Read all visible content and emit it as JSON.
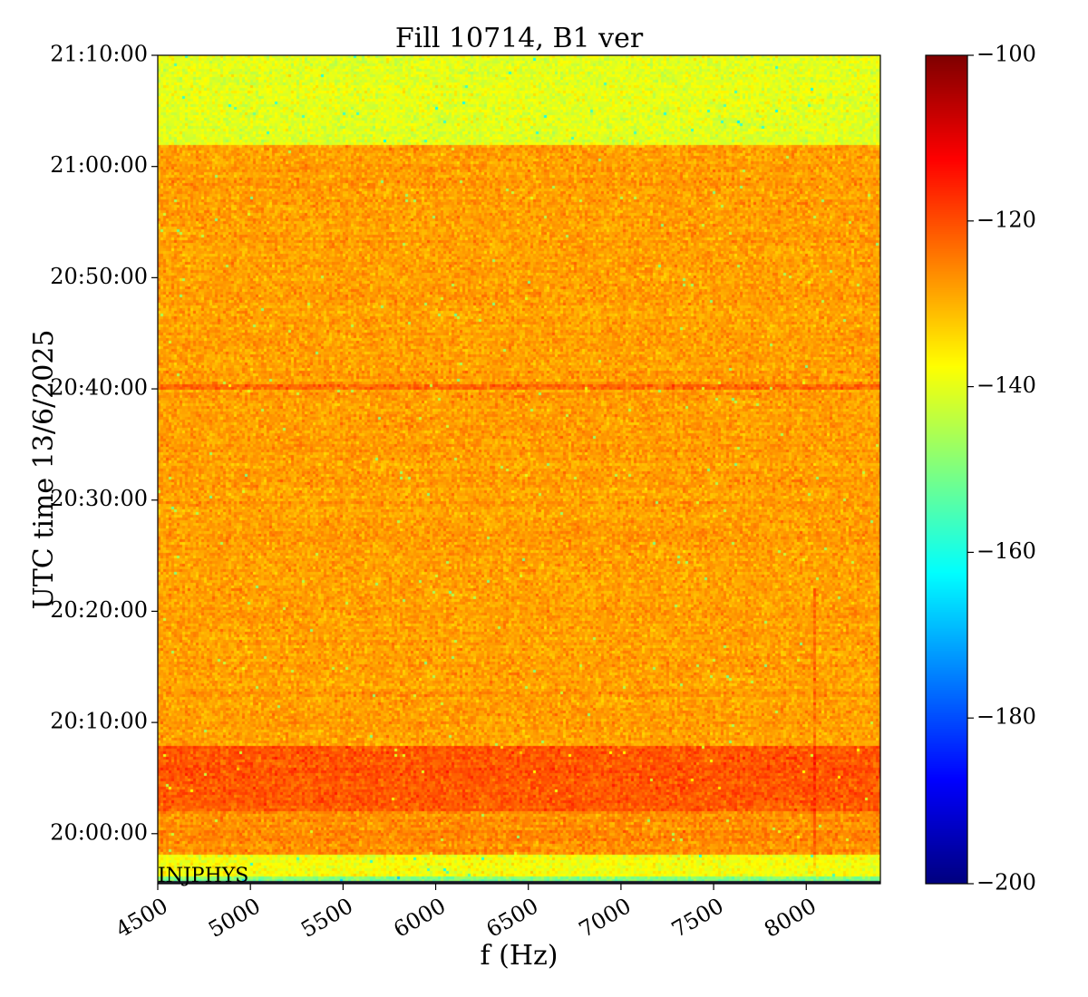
{
  "chart_data": {
    "type": "heatmap",
    "title": "Fill 10714, B1 ver",
    "xlabel": "f (Hz)",
    "ylabel": "UTC time 13/6/2025",
    "x_ticks": [
      "4500",
      "5000",
      "5500",
      "6000",
      "6500",
      "7000",
      "7500",
      "8000"
    ],
    "x_tick_values": [
      4500,
      5000,
      5500,
      6000,
      6500,
      7000,
      7500,
      8000
    ],
    "xlim": [
      4500,
      8400
    ],
    "y_ticks": [
      "20:00:00",
      "20:10:00",
      "20:20:00",
      "20:30:00",
      "20:40:00",
      "20:50:00",
      "21:00:00",
      "21:10:00"
    ],
    "y_tick_values_minutes": [
      0,
      10,
      20,
      30,
      40,
      50,
      60,
      70
    ],
    "ylim_minutes": [
      -4.5,
      70
    ],
    "colorbar": {
      "colormap": "jet",
      "range": [
        -200,
        -100
      ],
      "ticks": [
        "−100",
        "−120",
        "−140",
        "−160",
        "−180",
        "−200"
      ],
      "tick_values": [
        -100,
        -120,
        -140,
        -160,
        -180,
        -200
      ]
    },
    "annotation": "INJPHYS",
    "regions": [
      {
        "from_min": -4.5,
        "to_min": -3.8,
        "level_db": -150,
        "note": "dark band at bottom"
      },
      {
        "from_min": -3.8,
        "to_min": -2.0,
        "level_db": -138
      },
      {
        "from_min": -2.0,
        "to_min": 2.0,
        "level_db": -126
      },
      {
        "from_min": 2.0,
        "to_min": 8.0,
        "level_db": -121
      },
      {
        "from_min": 8.0,
        "to_min": 62.0,
        "level_db": -128
      },
      {
        "from_min": 62.0,
        "to_min": 70.0,
        "level_db": -140
      }
    ],
    "features": {
      "horizontal_line_minutes": 40.1,
      "vertical_line_hz": 8050,
      "vertical_line_span_minutes": [
        -3,
        22
      ]
    }
  }
}
